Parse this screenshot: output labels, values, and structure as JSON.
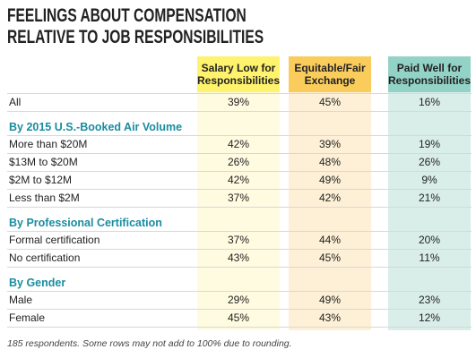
{
  "title": [
    "FEELINGS ABOUT COMPENSATION",
    "RELATIVE TO JOB RESPONSIBILITIES"
  ],
  "table": {
    "columns": [
      [
        "Salary Low for",
        "Responsibilities"
      ],
      [
        "Equitable/Fair",
        "Exchange"
      ],
      [
        "Paid Well for",
        "Responsibilities"
      ]
    ],
    "sections": [
      {
        "rows": [
          {
            "label": "All",
            "values": [
              "39%",
              "45%",
              "16%"
            ]
          }
        ]
      },
      {
        "heading": "By 2015 U.S.-Booked Air Volume",
        "rows": [
          {
            "label": "More than $20M",
            "values": [
              "42%",
              "39%",
              "19%"
            ]
          },
          {
            "label": "$13M to $20M",
            "values": [
              "26%",
              "48%",
              "26%"
            ]
          },
          {
            "label": "$2M to $12M",
            "values": [
              "42%",
              "49%",
              "9%"
            ]
          },
          {
            "label": "Less than $2M",
            "values": [
              "37%",
              "42%",
              "21%"
            ]
          }
        ]
      },
      {
        "heading": "By Professional Certification",
        "rows": [
          {
            "label": "Formal certification",
            "values": [
              "37%",
              "44%",
              "20%"
            ]
          },
          {
            "label": "No certification",
            "values": [
              "43%",
              "45%",
              "11%"
            ]
          }
        ]
      },
      {
        "heading": "By Gender",
        "rows": [
          {
            "label": "Male",
            "values": [
              "29%",
              "49%",
              "23%"
            ]
          },
          {
            "label": "Female",
            "values": [
              "45%",
              "43%",
              "12%"
            ]
          }
        ]
      }
    ]
  },
  "footnote": "185 respondents. Some rows may not add to 100% due to rounding."
}
